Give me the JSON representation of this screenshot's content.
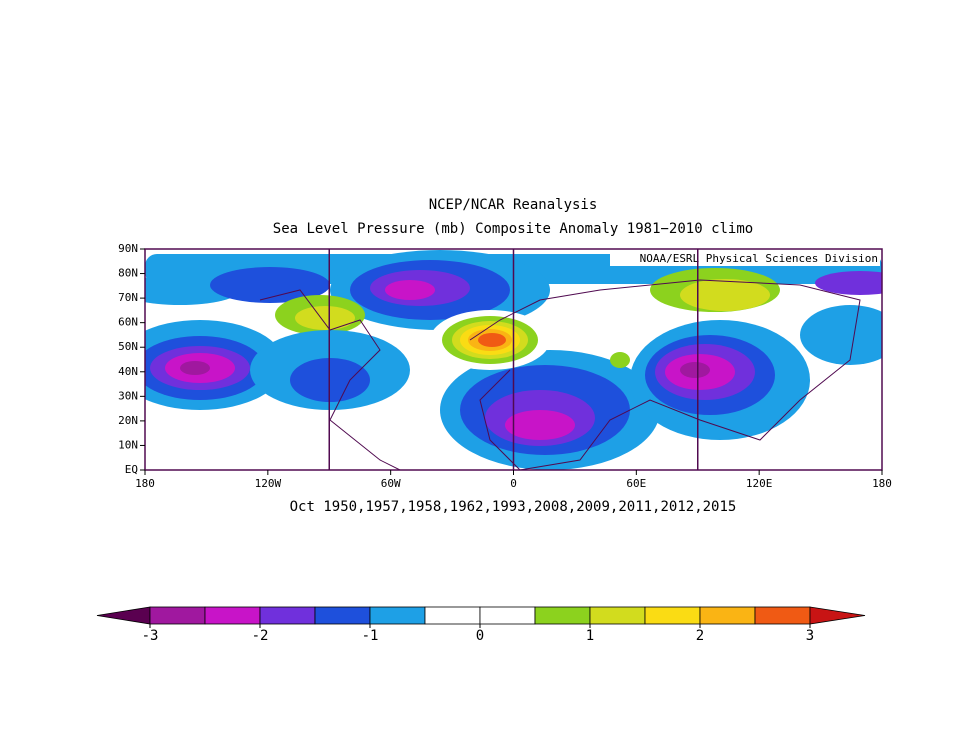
{
  "chart_data": {
    "type": "contour-map",
    "title": "NCEP/NCAR Reanalysis",
    "subtitle": "Sea Level Pressure (mb) Composite Anomaly 1981−2010 climo",
    "annotation": "NOAA/ESRL Physical Sciences Division",
    "xlabel": "Oct 1950,1957,1958,1962,1993,2008,2009,2011,2012,2015",
    "xlim": [
      -180,
      180
    ],
    "ylim": [
      0,
      90
    ],
    "xticks": [
      {
        "value": -180,
        "label": "180"
      },
      {
        "value": -120,
        "label": "120W"
      },
      {
        "value": -60,
        "label": "60W"
      },
      0,
      {
        "value": 60,
        "label": "60E"
      },
      {
        "value": 120,
        "label": "120E"
      },
      {
        "value": 180,
        "label": "180"
      }
    ],
    "yticks": [
      {
        "value": 0,
        "label": "EQ"
      },
      {
        "value": 10,
        "label": "10N"
      },
      {
        "value": 20,
        "label": "20N"
      },
      {
        "value": 30,
        "label": "30N"
      },
      {
        "value": 40,
        "label": "40N"
      },
      {
        "value": 50,
        "label": "50N"
      },
      {
        "value": 60,
        "label": "60N"
      },
      {
        "value": 70,
        "label": "70N"
      },
      {
        "value": 80,
        "label": "80N"
      },
      {
        "value": 90,
        "label": "90N"
      }
    ],
    "meridians": [
      -90,
      0,
      90
    ],
    "colorbar": {
      "levels": [
        -3,
        -2.5,
        -2,
        -1.5,
        -1,
        -0.5,
        0,
        0.5,
        1,
        1.5,
        2,
        2.5,
        3
      ],
      "colors": [
        "#5a0050",
        "#a0189f",
        "#c814c8",
        "#7030dc",
        "#1e50dc",
        "#1ea0e6",
        "#ffffff",
        "#ffffff",
        "#8cd21e",
        "#d2dc1e",
        "#fadc14",
        "#fab414",
        "#f05a14",
        "#c81414"
      ],
      "ticks": [
        -3,
        -2,
        -1,
        0,
        1,
        2,
        3
      ]
    }
  }
}
